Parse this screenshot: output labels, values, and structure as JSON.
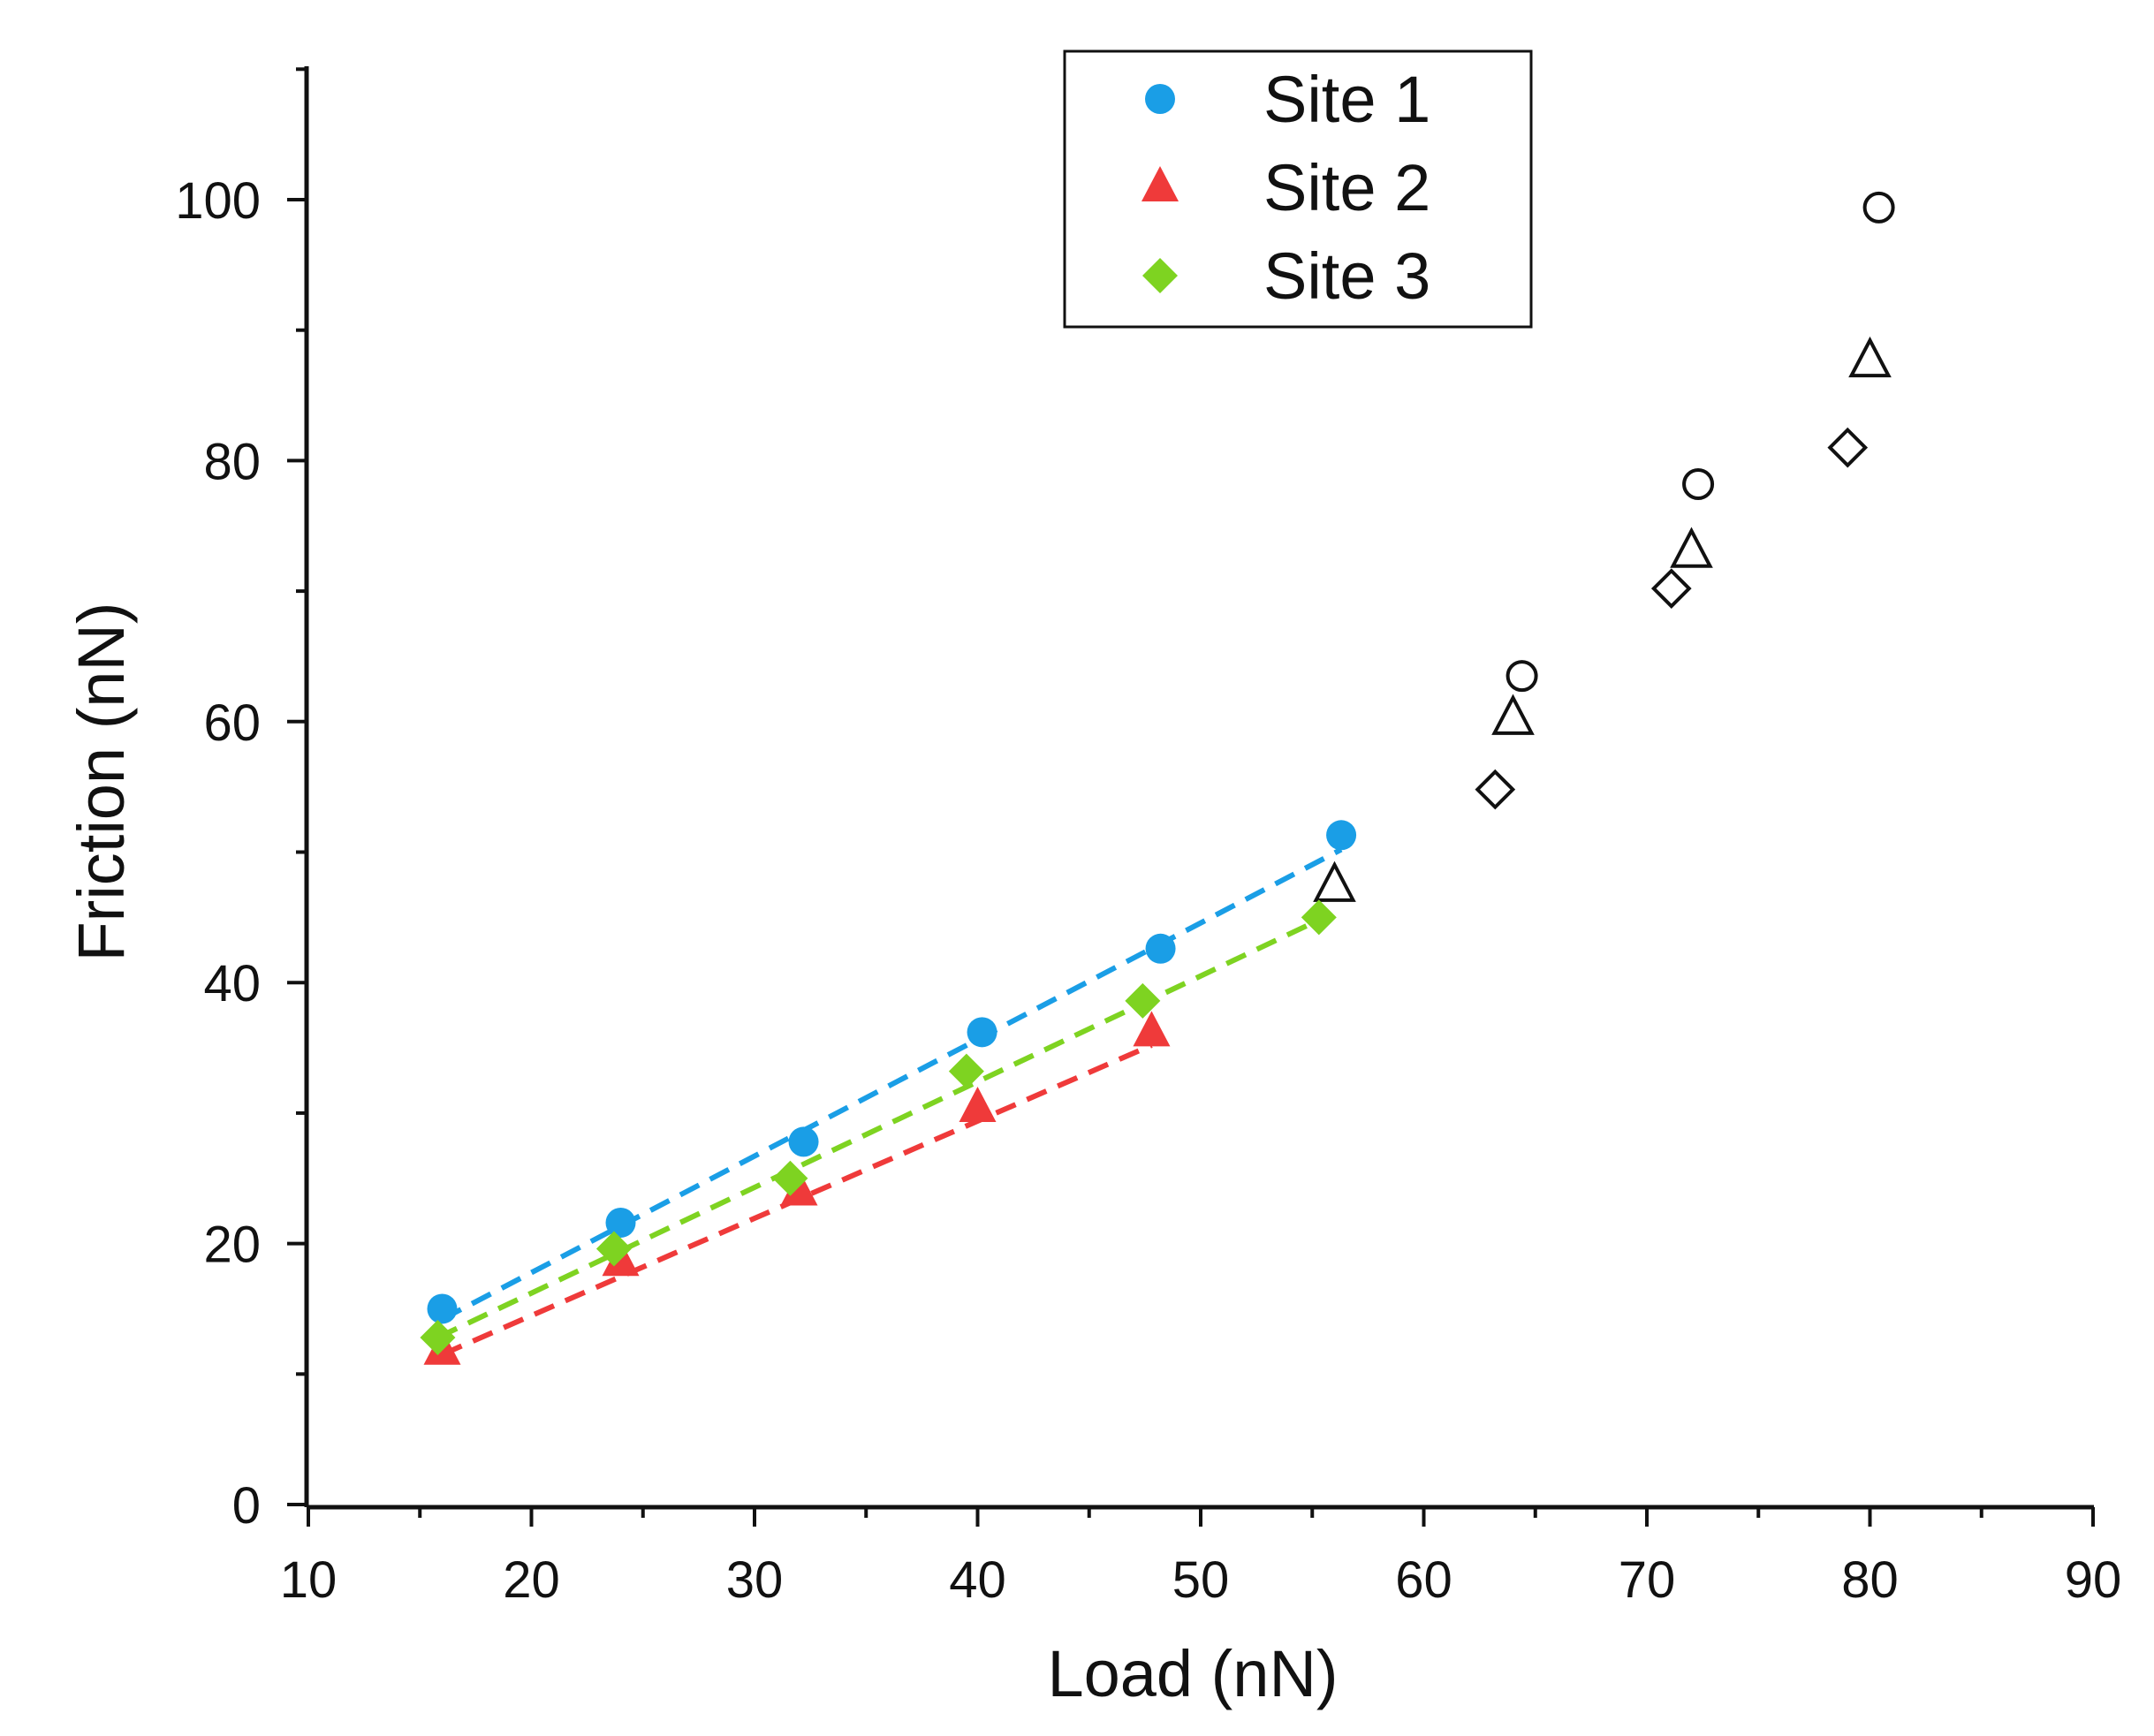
{
  "chart_data": {
    "type": "scatter",
    "title": "",
    "xlabel": "Load (nN)",
    "ylabel": "Friction (nN)",
    "xlim": [
      10,
      90
    ],
    "ylim": [
      0,
      110
    ],
    "x_ticks": [
      10,
      20,
      30,
      40,
      50,
      60,
      70,
      80,
      90
    ],
    "y_ticks": [
      0,
      20,
      40,
      60,
      80,
      100
    ],
    "x_minor_step": 5,
    "y_minor_step": 10,
    "grid": false,
    "legend_position": "top-center",
    "series": [
      {
        "name": "Site 1",
        "marker": "circle",
        "color": "#1a9ee6",
        "filled": {
          "x": [
            16,
            24,
            32.2,
            40.2,
            48.2,
            56.3
          ],
          "y": [
            15,
            21.6,
            27.8,
            36.2,
            42.6,
            51.3
          ]
        },
        "open": {
          "x": [
            64.4,
            72.3,
            80.4
          ],
          "y": [
            63.5,
            78.2,
            99.4
          ]
        },
        "fit": {
          "x": [
            16,
            56.3
          ],
          "y": [
            14.2,
            50.2
          ]
        }
      },
      {
        "name": "Site 2",
        "marker": "triangle",
        "color": "#ef3a3a",
        "filled": {
          "x": [
            16,
            24,
            32,
            40,
            47.8
          ],
          "y": [
            11.8,
            18.6,
            24,
            30.4,
            36.2
          ]
        },
        "open": {
          "x": [
            56,
            64,
            72,
            80
          ],
          "y": [
            47.4,
            60.2,
            73,
            87.6
          ]
        },
        "fit": {
          "x": [
            16,
            47.8
          ],
          "y": [
            11.5,
            35.2
          ]
        }
      },
      {
        "name": "Site 3",
        "marker": "diamond",
        "color": "#7ed321",
        "filled": {
          "x": [
            15.8,
            23.7,
            31.6,
            39.5,
            47.4,
            55.3
          ],
          "y": [
            12.8,
            19.6,
            25,
            33.2,
            38.6,
            45
          ]
        },
        "open": {
          "x": [
            63.2,
            71.1,
            79
          ],
          "y": [
            54.8,
            70.2,
            81
          ]
        },
        "fit": {
          "x": [
            15.8,
            55.3
          ],
          "y": [
            12.8,
            44.8
          ]
        }
      }
    ]
  }
}
